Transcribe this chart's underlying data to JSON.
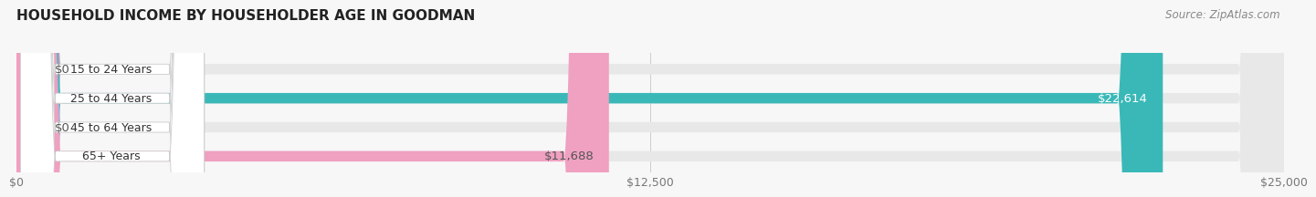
{
  "title": "HOUSEHOLD INCOME BY HOUSEHOLDER AGE IN GOODMAN",
  "source": "Source: ZipAtlas.com",
  "categories": [
    "15 to 24 Years",
    "25 to 44 Years",
    "45 to 64 Years",
    "65+ Years"
  ],
  "values": [
    0,
    22614,
    0,
    11688
  ],
  "bar_colors": [
    "#c9a0bc",
    "#3ab8b8",
    "#adadd4",
    "#f0a0c0"
  ],
  "bar_label_colors": [
    "#555555",
    "#ffffff",
    "#555555",
    "#555555"
  ],
  "bar_labels": [
    "$0",
    "$22,614",
    "$0",
    "$11,688"
  ],
  "xlim": [
    0,
    25000
  ],
  "xticks": [
    0,
    12500,
    25000
  ],
  "xtick_labels": [
    "$0",
    "$12,500",
    "$25,000"
  ],
  "background_color": "#f7f7f7",
  "bar_bg_color": "#e8e8e8",
  "title_color": "#222222",
  "source_color": "#888888",
  "label_pill_color": "#ffffff",
  "label_text_color": "#333333"
}
